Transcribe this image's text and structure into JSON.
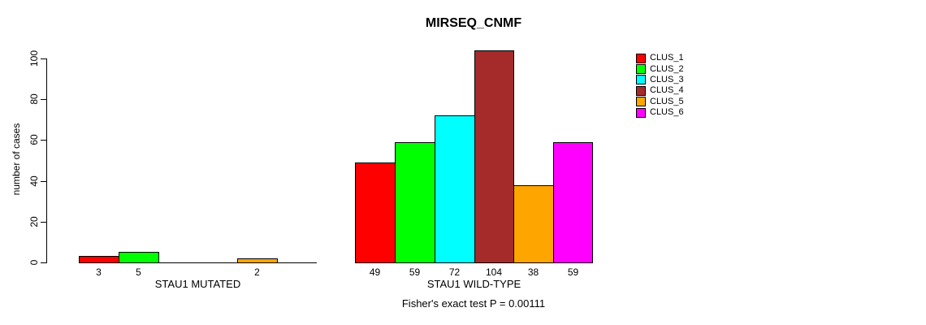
{
  "title": "MIRSEQ_CNMF",
  "ylabel": "number of cases",
  "annotation": "Fisher's exact test P = 0.00111",
  "chart_data": {
    "type": "bar",
    "title": "MIRSEQ_CNMF",
    "ylabel": "number of cases",
    "ylim": [
      0,
      100
    ],
    "yticks": [
      0,
      20,
      40,
      60,
      80,
      100
    ],
    "categories": [
      "STAU1 MUTATED",
      "STAU1 WILD-TYPE"
    ],
    "series": [
      {
        "name": "CLUS_1",
        "color": "#ff0000",
        "values": [
          3,
          49
        ]
      },
      {
        "name": "CLUS_2",
        "color": "#00ff00",
        "values": [
          5,
          59
        ]
      },
      {
        "name": "CLUS_3",
        "color": "#00ffff",
        "values": [
          0,
          72
        ]
      },
      {
        "name": "CLUS_4",
        "color": "#a52a2a",
        "values": [
          0,
          104
        ]
      },
      {
        "name": "CLUS_5",
        "color": "#ffa500",
        "values": [
          2,
          38
        ]
      },
      {
        "name": "CLUS_6",
        "color": "#ff00ff",
        "values": [
          0,
          59
        ]
      }
    ],
    "bar_labels": [
      [
        "3",
        "5",
        "",
        "",
        "2",
        ""
      ],
      [
        "49",
        "59",
        "72",
        "104",
        "38",
        "59"
      ]
    ],
    "legend_entries": [
      "CLUS_1",
      "CLUS_2",
      "CLUS_3",
      "CLUS_4",
      "CLUS_5",
      "CLUS_6"
    ],
    "legend_position": "top-right",
    "grid": false,
    "annotation": "Fisher's exact test P = 0.00111"
  }
}
